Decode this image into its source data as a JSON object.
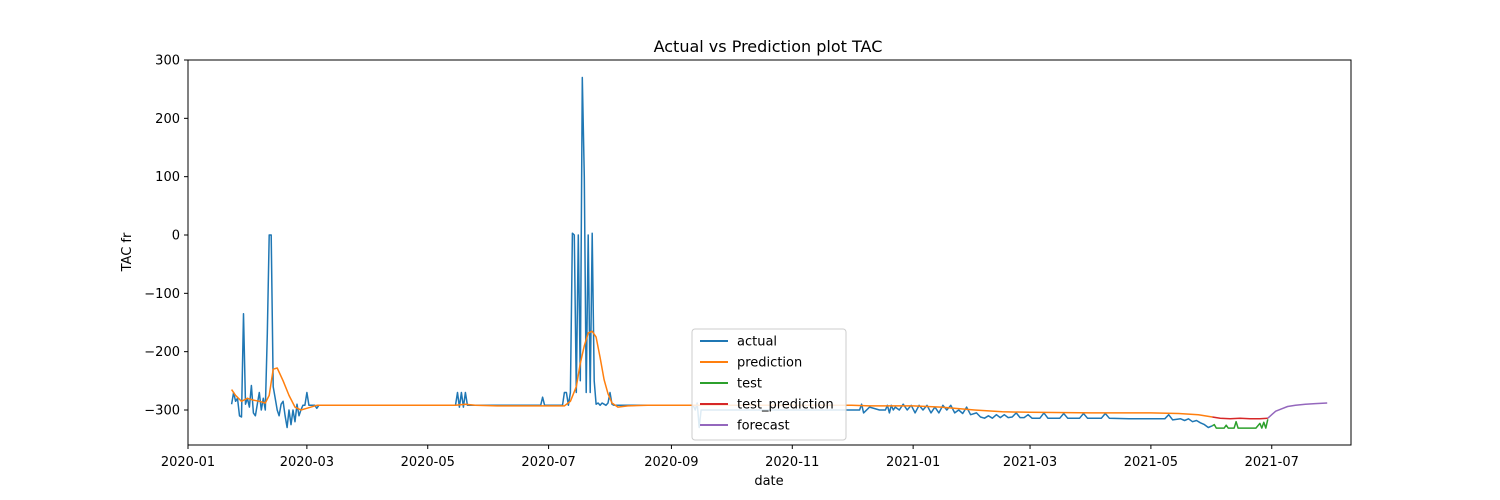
{
  "chart_data": {
    "type": "line",
    "title": "Actual vs Prediction plot TAC",
    "xlabel": "date",
    "ylabel": "TAC fr",
    "xlim": [
      "2020-01-01",
      "2021-08-10"
    ],
    "ylim": [
      -360,
      300
    ],
    "x_ticks": [
      "2020-01-01",
      "2020-03-01",
      "2020-05-01",
      "2020-07-01",
      "2020-09-01",
      "2020-11-01",
      "2021-01-01",
      "2021-03-01",
      "2021-05-01",
      "2021-07-01"
    ],
    "x_tick_labels": [
      "2020-01",
      "2020-03",
      "2020-05",
      "2020-07",
      "2020-09",
      "2020-11",
      "2021-01",
      "2021-03",
      "2021-05",
      "2021-07"
    ],
    "y_ticks": [
      -300,
      -200,
      -100,
      0,
      100,
      200,
      300
    ],
    "y_tick_labels": [
      "−300",
      "−200",
      "−100",
      "0",
      "100",
      "200",
      "300"
    ],
    "grid": false,
    "legend_position": "lower center",
    "series": [
      {
        "name": "actual",
        "color": "#1f77b4",
        "points": [
          [
            "2020-01-23",
            -290
          ],
          [
            "2020-01-24",
            -270
          ],
          [
            "2020-01-25",
            -285
          ],
          [
            "2020-01-26",
            -280
          ],
          [
            "2020-01-27",
            -310
          ],
          [
            "2020-01-28",
            -312
          ],
          [
            "2020-01-29",
            -135
          ],
          [
            "2020-01-30",
            -290
          ],
          [
            "2020-01-31",
            -280
          ],
          [
            "2020-02-01",
            -295
          ],
          [
            "2020-02-02",
            -258
          ],
          [
            "2020-02-03",
            -305
          ],
          [
            "2020-02-04",
            -310
          ],
          [
            "2020-02-05",
            -290
          ],
          [
            "2020-02-06",
            -270
          ],
          [
            "2020-02-07",
            -300
          ],
          [
            "2020-02-08",
            -280
          ],
          [
            "2020-02-09",
            -300
          ],
          [
            "2020-02-10",
            -170
          ],
          [
            "2020-02-11",
            0
          ],
          [
            "2020-02-12",
            0
          ],
          [
            "2020-02-13",
            -260
          ],
          [
            "2020-02-14",
            -280
          ],
          [
            "2020-02-15",
            -300
          ],
          [
            "2020-02-16",
            -310
          ],
          [
            "2020-02-17",
            -290
          ],
          [
            "2020-02-18",
            -285
          ],
          [
            "2020-02-19",
            -310
          ],
          [
            "2020-02-20",
            -330
          ],
          [
            "2020-02-21",
            -300
          ],
          [
            "2020-02-22",
            -325
          ],
          [
            "2020-02-23",
            -300
          ],
          [
            "2020-02-24",
            -320
          ],
          [
            "2020-02-25",
            -290
          ],
          [
            "2020-02-26",
            -310
          ],
          [
            "2020-02-27",
            -300
          ],
          [
            "2020-02-28",
            -292
          ],
          [
            "2020-02-29",
            -292
          ],
          [
            "2020-03-01",
            -270
          ],
          [
            "2020-03-02",
            -292
          ],
          [
            "2020-03-05",
            -292
          ],
          [
            "2020-03-06",
            -297
          ],
          [
            "2020-03-07",
            -292
          ],
          [
            "2020-05-15",
            -292
          ],
          [
            "2020-05-16",
            -270
          ],
          [
            "2020-05-17",
            -295
          ],
          [
            "2020-05-18",
            -270
          ],
          [
            "2020-05-19",
            -295
          ],
          [
            "2020-05-20",
            -270
          ],
          [
            "2020-05-21",
            -292
          ],
          [
            "2020-06-27",
            -292
          ],
          [
            "2020-06-28",
            -278
          ],
          [
            "2020-06-29",
            -292
          ],
          [
            "2020-07-08",
            -292
          ],
          [
            "2020-07-09",
            -270
          ],
          [
            "2020-07-10",
            -270
          ],
          [
            "2020-07-11",
            -292
          ],
          [
            "2020-07-12",
            -270
          ],
          [
            "2020-07-13",
            3
          ],
          [
            "2020-07-14",
            0
          ],
          [
            "2020-07-15",
            -270
          ],
          [
            "2020-07-16",
            0
          ],
          [
            "2020-07-17",
            -250
          ],
          [
            "2020-07-18",
            270
          ],
          [
            "2020-07-19",
            100
          ],
          [
            "2020-07-20",
            -270
          ],
          [
            "2020-07-21",
            0
          ],
          [
            "2020-07-22",
            -270
          ],
          [
            "2020-07-23",
            3
          ],
          [
            "2020-07-24",
            -250
          ],
          [
            "2020-07-25",
            -290
          ],
          [
            "2020-07-26",
            -288
          ],
          [
            "2020-07-27",
            -292
          ],
          [
            "2020-07-28",
            -288
          ],
          [
            "2020-07-29",
            -290
          ],
          [
            "2020-07-30",
            -292
          ],
          [
            "2020-07-31",
            -288
          ],
          [
            "2020-08-01",
            -270
          ],
          [
            "2020-08-02",
            -290
          ],
          [
            "2020-08-03",
            -292
          ],
          [
            "2020-09-12",
            -292
          ],
          [
            "2020-09-13",
            -300
          ],
          [
            "2020-09-14",
            -288
          ],
          [
            "2020-09-15",
            -330
          ],
          [
            "2020-09-16",
            -300
          ],
          [
            "2020-09-17",
            -300
          ],
          [
            "2020-12-05",
            -300
          ],
          [
            "2020-12-06",
            -290
          ],
          [
            "2020-12-07",
            -305
          ],
          [
            "2020-12-10",
            -295
          ],
          [
            "2020-12-15",
            -300
          ],
          [
            "2020-12-18",
            -300
          ],
          [
            "2020-12-19",
            -292
          ],
          [
            "2020-12-20",
            -305
          ],
          [
            "2020-12-21",
            -292
          ],
          [
            "2020-12-22",
            -300
          ],
          [
            "2020-12-23",
            -295
          ],
          [
            "2020-12-25",
            -300
          ],
          [
            "2020-12-27",
            -290
          ],
          [
            "2020-12-29",
            -300
          ],
          [
            "2020-12-31",
            -292
          ],
          [
            "2021-01-02",
            -305
          ],
          [
            "2021-01-04",
            -292
          ],
          [
            "2021-01-06",
            -300
          ],
          [
            "2021-01-08",
            -292
          ],
          [
            "2021-01-10",
            -305
          ],
          [
            "2021-01-12",
            -295
          ],
          [
            "2021-01-14",
            -305
          ],
          [
            "2021-01-16",
            -292
          ],
          [
            "2021-01-18",
            -300
          ],
          [
            "2021-01-20",
            -292
          ],
          [
            "2021-01-22",
            -305
          ],
          [
            "2021-01-24",
            -300
          ],
          [
            "2021-01-26",
            -306
          ],
          [
            "2021-01-28",
            -295
          ],
          [
            "2021-01-30",
            -308
          ],
          [
            "2021-02-02",
            -305
          ],
          [
            "2021-02-04",
            -312
          ],
          [
            "2021-02-06",
            -314
          ],
          [
            "2021-02-08",
            -310
          ],
          [
            "2021-02-10",
            -314
          ],
          [
            "2021-02-12",
            -308
          ],
          [
            "2021-02-14",
            -313
          ],
          [
            "2021-02-16",
            -308
          ],
          [
            "2021-02-18",
            -313
          ],
          [
            "2021-02-20",
            -312
          ],
          [
            "2021-02-22",
            -305
          ],
          [
            "2021-02-24",
            -313
          ],
          [
            "2021-02-26",
            -313
          ],
          [
            "2021-02-28",
            -308
          ],
          [
            "2021-03-02",
            -314
          ],
          [
            "2021-03-06",
            -314
          ],
          [
            "2021-03-08",
            -305
          ],
          [
            "2021-03-10",
            -314
          ],
          [
            "2021-03-16",
            -314
          ],
          [
            "2021-03-18",
            -306
          ],
          [
            "2021-03-20",
            -314
          ],
          [
            "2021-03-26",
            -314
          ],
          [
            "2021-03-28",
            -306
          ],
          [
            "2021-03-30",
            -314
          ],
          [
            "2021-04-06",
            -314
          ],
          [
            "2021-04-08",
            -306
          ],
          [
            "2021-04-10",
            -314
          ],
          [
            "2021-04-20",
            -315
          ],
          [
            "2021-05-01",
            -315
          ],
          [
            "2021-05-08",
            -315
          ],
          [
            "2021-05-10",
            -308
          ],
          [
            "2021-05-12",
            -317
          ],
          [
            "2021-05-16",
            -315
          ],
          [
            "2021-05-18",
            -318
          ],
          [
            "2021-05-20",
            -315
          ],
          [
            "2021-05-22",
            -320
          ],
          [
            "2021-05-24",
            -318
          ],
          [
            "2021-05-26",
            -322
          ],
          [
            "2021-05-28",
            -325
          ],
          [
            "2021-05-30",
            -330
          ],
          [
            "2021-06-01",
            -327
          ]
        ]
      },
      {
        "name": "prediction",
        "color": "#ff7f0e",
        "points": [
          [
            "2020-01-23",
            -265
          ],
          [
            "2020-01-25",
            -275
          ],
          [
            "2020-01-28",
            -285
          ],
          [
            "2020-01-31",
            -280
          ],
          [
            "2020-02-03",
            -283
          ],
          [
            "2020-02-06",
            -285
          ],
          [
            "2020-02-09",
            -288
          ],
          [
            "2020-02-11",
            -275
          ],
          [
            "2020-02-13",
            -230
          ],
          [
            "2020-02-15",
            -228
          ],
          [
            "2020-02-18",
            -250
          ],
          [
            "2020-02-21",
            -275
          ],
          [
            "2020-02-24",
            -295
          ],
          [
            "2020-02-27",
            -300
          ],
          [
            "2020-03-02",
            -296
          ],
          [
            "2020-03-06",
            -292
          ],
          [
            "2020-05-15",
            -292
          ],
          [
            "2020-05-20",
            -290
          ],
          [
            "2020-05-25",
            -292
          ],
          [
            "2020-06-05",
            -293
          ],
          [
            "2020-07-09",
            -293
          ],
          [
            "2020-07-12",
            -285
          ],
          [
            "2020-07-15",
            -260
          ],
          [
            "2020-07-17",
            -220
          ],
          [
            "2020-07-19",
            -190
          ],
          [
            "2020-07-21",
            -168
          ],
          [
            "2020-07-23",
            -165
          ],
          [
            "2020-07-25",
            -175
          ],
          [
            "2020-07-27",
            -210
          ],
          [
            "2020-07-29",
            -248
          ],
          [
            "2020-07-31",
            -272
          ],
          [
            "2020-08-02",
            -288
          ],
          [
            "2020-08-05",
            -295
          ],
          [
            "2020-08-10",
            -293
          ],
          [
            "2020-08-20",
            -292
          ],
          [
            "2020-10-01",
            -292
          ],
          [
            "2020-12-01",
            -292
          ],
          [
            "2020-12-10",
            -293
          ],
          [
            "2021-01-01",
            -293
          ],
          [
            "2021-01-15",
            -295
          ],
          [
            "2021-02-01",
            -300
          ],
          [
            "2021-02-15",
            -303
          ],
          [
            "2021-03-01",
            -304
          ],
          [
            "2021-04-01",
            -305
          ],
          [
            "2021-05-01",
            -305
          ],
          [
            "2021-05-15",
            -306
          ],
          [
            "2021-05-25",
            -308
          ],
          [
            "2021-06-01",
            -312
          ]
        ]
      },
      {
        "name": "test",
        "color": "#2ca02c",
        "points": [
          [
            "2021-06-01",
            -327
          ],
          [
            "2021-06-02",
            -325
          ],
          [
            "2021-06-03",
            -331
          ],
          [
            "2021-06-05",
            -331
          ],
          [
            "2021-06-07",
            -331
          ],
          [
            "2021-06-08",
            -326
          ],
          [
            "2021-06-09",
            -331
          ],
          [
            "2021-06-12",
            -331
          ],
          [
            "2021-06-13",
            -320
          ],
          [
            "2021-06-14",
            -331
          ],
          [
            "2021-06-17",
            -331
          ],
          [
            "2021-06-20",
            -331
          ],
          [
            "2021-06-23",
            -331
          ],
          [
            "2021-06-25",
            -323
          ],
          [
            "2021-06-26",
            -331
          ],
          [
            "2021-06-27",
            -321
          ],
          [
            "2021-06-28",
            -331
          ],
          [
            "2021-06-29",
            -316
          ]
        ]
      },
      {
        "name": "test_prediction",
        "color": "#d62728",
        "points": [
          [
            "2021-06-01",
            -312
          ],
          [
            "2021-06-05",
            -314
          ],
          [
            "2021-06-10",
            -315
          ],
          [
            "2021-06-15",
            -314
          ],
          [
            "2021-06-20",
            -315
          ],
          [
            "2021-06-25",
            -315
          ],
          [
            "2021-06-29",
            -314
          ]
        ]
      },
      {
        "name": "forecast",
        "color": "#9467bd",
        "points": [
          [
            "2021-06-29",
            -314
          ],
          [
            "2021-07-01",
            -308
          ],
          [
            "2021-07-03",
            -302
          ],
          [
            "2021-07-06",
            -298
          ],
          [
            "2021-07-09",
            -294
          ],
          [
            "2021-07-13",
            -292
          ],
          [
            "2021-07-18",
            -290
          ],
          [
            "2021-07-23",
            -289
          ],
          [
            "2021-07-29",
            -288
          ]
        ]
      }
    ]
  }
}
